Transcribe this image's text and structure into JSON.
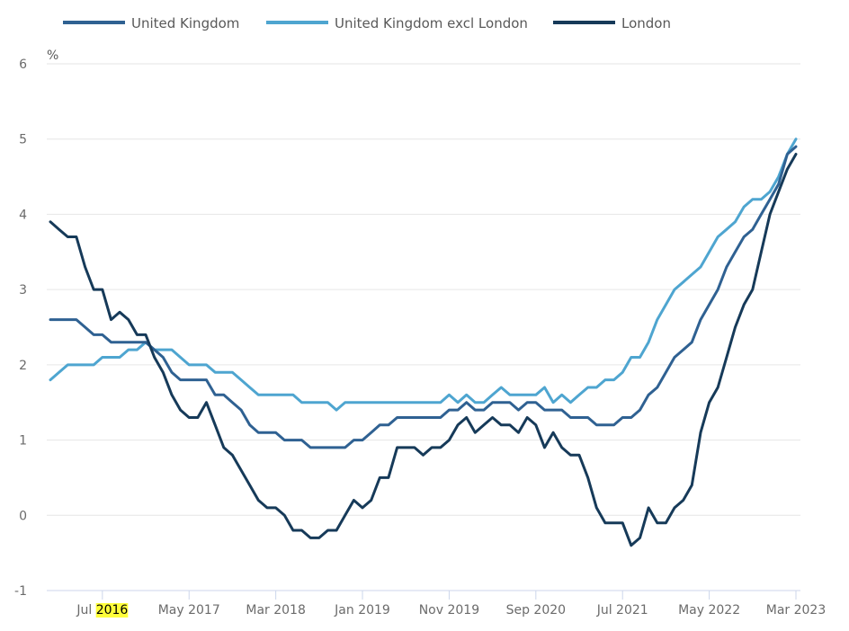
{
  "chart_data": {
    "type": "line",
    "title": "",
    "xlabel": "",
    "ylabel": "%",
    "ylim": [
      -1,
      6
    ],
    "yticks": [
      6,
      5,
      4,
      3,
      2,
      1,
      0,
      -1
    ],
    "grid": true,
    "legend_position": "top",
    "x_start": "Jan 2016",
    "x_end": "Mar 2023",
    "x_frequency": "monthly",
    "xtick_labels": [
      {
        "label": "Jul 2016",
        "month_index": 6,
        "highlight_word": "2016"
      },
      {
        "label": "May 2017",
        "month_index": 16
      },
      {
        "label": "Mar 2018",
        "month_index": 26
      },
      {
        "label": "Jan 2019",
        "month_index": 36
      },
      {
        "label": "Nov 2019",
        "month_index": 46
      },
      {
        "label": "Sep 2020",
        "month_index": 56
      },
      {
        "label": "Jul 2021",
        "month_index": 66
      },
      {
        "label": "May 2022",
        "month_index": 76
      },
      {
        "label": "Mar 2023",
        "month_index": 86
      }
    ],
    "series": [
      {
        "name": "United Kingdom",
        "color": "#2f6192",
        "values": [
          2.6,
          2.6,
          2.6,
          2.6,
          2.5,
          2.4,
          2.4,
          2.3,
          2.3,
          2.3,
          2.3,
          2.3,
          2.2,
          2.1,
          1.9,
          1.8,
          1.8,
          1.8,
          1.8,
          1.6,
          1.6,
          1.5,
          1.4,
          1.2,
          1.1,
          1.1,
          1.1,
          1.0,
          1.0,
          1.0,
          0.9,
          0.9,
          0.9,
          0.9,
          0.9,
          1.0,
          1.0,
          1.1,
          1.2,
          1.2,
          1.3,
          1.3,
          1.3,
          1.3,
          1.3,
          1.3,
          1.4,
          1.4,
          1.5,
          1.4,
          1.4,
          1.5,
          1.5,
          1.5,
          1.4,
          1.5,
          1.5,
          1.4,
          1.4,
          1.4,
          1.3,
          1.3,
          1.3,
          1.2,
          1.2,
          1.2,
          1.3,
          1.3,
          1.4,
          1.6,
          1.7,
          1.9,
          2.1,
          2.2,
          2.3,
          2.6,
          2.8,
          3.0,
          3.3,
          3.5,
          3.7,
          3.8,
          4.0,
          4.2,
          4.4,
          4.8,
          4.9
        ]
      },
      {
        "name": "United Kingdom excl London",
        "color": "#4ea5d0",
        "values": [
          1.8,
          1.9,
          2.0,
          2.0,
          2.0,
          2.0,
          2.1,
          2.1,
          2.1,
          2.2,
          2.2,
          2.3,
          2.2,
          2.2,
          2.2,
          2.1,
          2.0,
          2.0,
          2.0,
          1.9,
          1.9,
          1.9,
          1.8,
          1.7,
          1.6,
          1.6,
          1.6,
          1.6,
          1.6,
          1.5,
          1.5,
          1.5,
          1.5,
          1.4,
          1.5,
          1.5,
          1.5,
          1.5,
          1.5,
          1.5,
          1.5,
          1.5,
          1.5,
          1.5,
          1.5,
          1.5,
          1.6,
          1.5,
          1.6,
          1.5,
          1.5,
          1.6,
          1.7,
          1.6,
          1.6,
          1.6,
          1.6,
          1.7,
          1.5,
          1.6,
          1.5,
          1.6,
          1.7,
          1.7,
          1.8,
          1.8,
          1.9,
          2.1,
          2.1,
          2.3,
          2.6,
          2.8,
          3.0,
          3.1,
          3.2,
          3.3,
          3.5,
          3.7,
          3.8,
          3.9,
          4.1,
          4.2,
          4.2,
          4.3,
          4.5,
          4.8,
          5.0
        ]
      },
      {
        "name": "London",
        "color": "#163a59",
        "values": [
          3.9,
          3.8,
          3.7,
          3.7,
          3.3,
          3.0,
          3.0,
          2.6,
          2.7,
          2.6,
          2.4,
          2.4,
          2.1,
          1.9,
          1.6,
          1.4,
          1.3,
          1.3,
          1.5,
          1.2,
          0.9,
          0.8,
          0.6,
          0.4,
          0.2,
          0.1,
          0.1,
          0.0,
          -0.2,
          -0.2,
          -0.3,
          -0.3,
          -0.2,
          -0.2,
          0.0,
          0.2,
          0.1,
          0.2,
          0.5,
          0.5,
          0.9,
          0.9,
          0.9,
          0.8,
          0.9,
          0.9,
          1.0,
          1.2,
          1.3,
          1.1,
          1.2,
          1.3,
          1.2,
          1.2,
          1.1,
          1.3,
          1.2,
          0.9,
          1.1,
          0.9,
          0.8,
          0.8,
          0.5,
          0.1,
          -0.1,
          -0.1,
          -0.1,
          -0.4,
          -0.3,
          0.1,
          -0.1,
          -0.1,
          0.1,
          0.2,
          0.4,
          1.1,
          1.5,
          1.7,
          2.1,
          2.5,
          2.8,
          3.0,
          3.5,
          4.0,
          4.3,
          4.6,
          4.8
        ]
      }
    ]
  }
}
